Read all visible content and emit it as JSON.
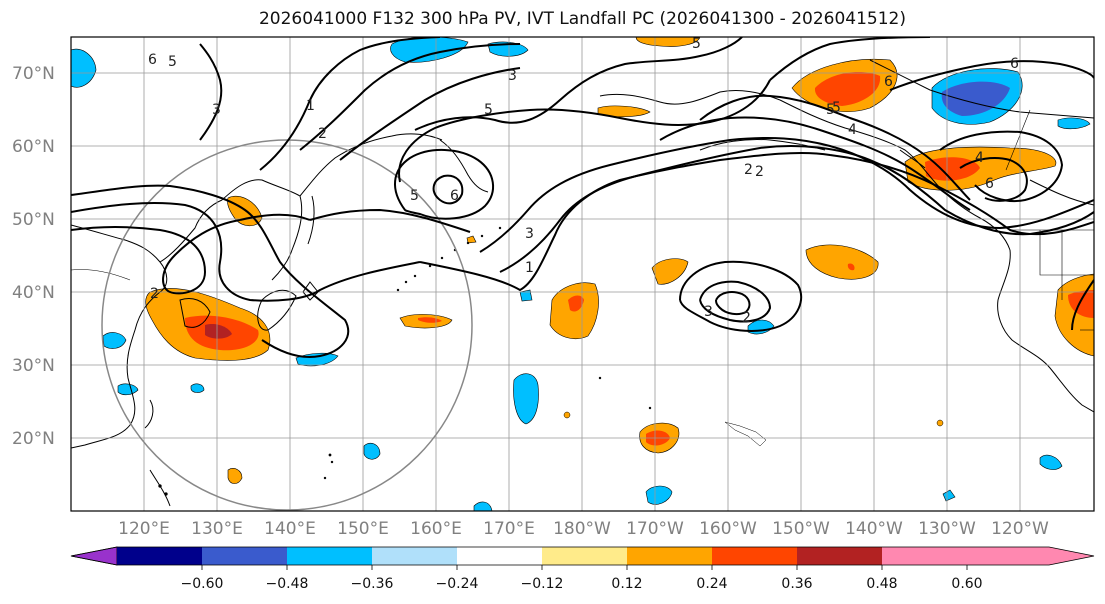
{
  "title": "2026041000 F132 300 hPa PV, IVT Landfall PC (2026041300 - 2026041512)",
  "lat_labels": [
    "70°N",
    "60°N",
    "50°N",
    "40°N",
    "30°N",
    "20°N"
  ],
  "lon_labels": [
    "120°E",
    "130°E",
    "140°E",
    "150°E",
    "160°E",
    "170°E",
    "180°W",
    "170°W",
    "160°W",
    "150°W",
    "140°W",
    "130°W",
    "120°W"
  ],
  "colorbar": {
    "ticks": [
      "−0.60",
      "−0.48",
      "−0.36",
      "−0.24",
      "−0.12",
      "0.12",
      "0.24",
      "0.36",
      "0.48",
      "0.60"
    ],
    "colors": [
      "#9932cc",
      "#00008b",
      "#3a5bcd",
      "#00bfff",
      "#b0e0fa",
      "#ffffff",
      "#ffeb8a",
      "#ffa500",
      "#ff4500",
      "#b22222",
      "#ff88b0"
    ]
  },
  "contour_labels": [
    "6",
    "5",
    "3",
    "1",
    "2",
    "5",
    "3",
    "5",
    "5",
    "6",
    "6",
    "3",
    "1",
    "2",
    "4",
    "2",
    "6",
    "2",
    "5",
    "3",
    "2",
    "5",
    "6",
    "4"
  ]
}
